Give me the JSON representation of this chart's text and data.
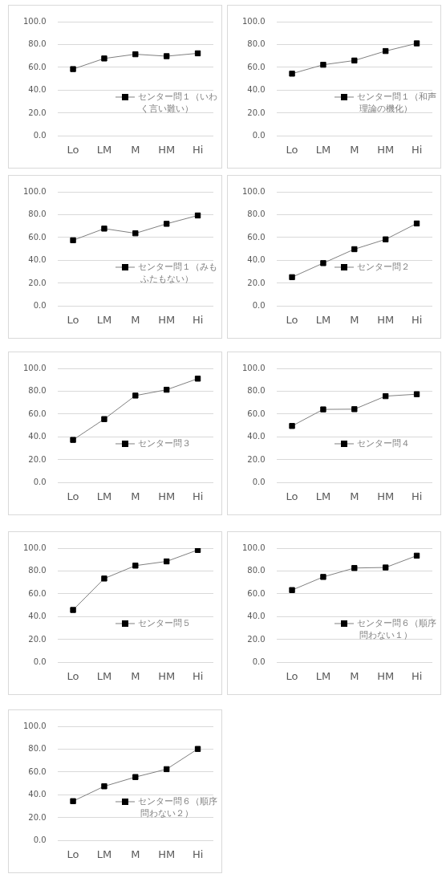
{
  "chart_data": [
    {
      "type": "line",
      "categories": [
        "Lo",
        "LM",
        "M",
        "HM",
        "Hi"
      ],
      "series": [
        {
          "name": "センター問１（いわく言い難い）",
          "color": "#000000",
          "values": [
            58.5,
            67.8,
            71.5,
            69.8,
            72.3
          ]
        }
      ],
      "ylim": [
        0,
        100
      ],
      "yticks": [
        {
          "value": 0,
          "label": "0.0"
        },
        {
          "value": 20,
          "label": "20.0"
        },
        {
          "value": 40,
          "label": "40.0"
        },
        {
          "value": 60,
          "label": "60.0"
        },
        {
          "value": 80,
          "label": "80.0"
        },
        {
          "value": 100,
          "label": "100.0"
        }
      ],
      "grid": "y",
      "legend": "right",
      "marker": "square"
    },
    {
      "type": "line",
      "categories": [
        "Lo",
        "LM",
        "M",
        "HM",
        "Hi"
      ],
      "series": [
        {
          "name": "センター問１（和声理論の機化）",
          "color": "#000000",
          "values": [
            54.5,
            62.3,
            66.0,
            74.3,
            81.0
          ]
        }
      ],
      "ylim": [
        0,
        100
      ],
      "yticks": [
        {
          "value": 0,
          "label": "0.0"
        },
        {
          "value": 20,
          "label": "20.0"
        },
        {
          "value": 40,
          "label": "40.0"
        },
        {
          "value": 60,
          "label": "60.0"
        },
        {
          "value": 80,
          "label": "80.0"
        },
        {
          "value": 100,
          "label": "100.0"
        }
      ],
      "grid": "y",
      "legend": "right",
      "marker": "square"
    },
    {
      "type": "line",
      "categories": [
        "Lo",
        "LM",
        "M",
        "HM",
        "Hi"
      ],
      "series": [
        {
          "name": "センター問１（みもふたもない）",
          "color": "#000000",
          "values": [
            57.6,
            67.8,
            63.7,
            72.0,
            79.3
          ]
        }
      ],
      "ylim": [
        0,
        100
      ],
      "yticks": [
        {
          "value": 0,
          "label": "0.0"
        },
        {
          "value": 20,
          "label": "20.0"
        },
        {
          "value": 40,
          "label": "40.0"
        },
        {
          "value": 60,
          "label": "60.0"
        },
        {
          "value": 80,
          "label": "80.0"
        },
        {
          "value": 100,
          "label": "100.0"
        }
      ],
      "grid": "y",
      "legend": "right",
      "marker": "square"
    },
    {
      "type": "line",
      "categories": [
        "Lo",
        "LM",
        "M",
        "HM",
        "Hi"
      ],
      "series": [
        {
          "name": "センター問２",
          "color": "#000000",
          "values": [
            25.3,
            37.6,
            49.8,
            58.4,
            72.3
          ]
        }
      ],
      "ylim": [
        0,
        100
      ],
      "yticks": [
        {
          "value": 0,
          "label": "0.0"
        },
        {
          "value": 20,
          "label": "20.0"
        },
        {
          "value": 40,
          "label": "40.0"
        },
        {
          "value": 60,
          "label": "60.0"
        },
        {
          "value": 80,
          "label": "80.0"
        },
        {
          "value": 100,
          "label": "100.0"
        }
      ],
      "grid": "y",
      "legend": "right",
      "marker": "square"
    },
    {
      "type": "line",
      "categories": [
        "Lo",
        "LM",
        "M",
        "HM",
        "Hi"
      ],
      "series": [
        {
          "name": "センター問３",
          "color": "#000000",
          "values": [
            37.4,
            55.6,
            76.2,
            81.3,
            91.0
          ]
        }
      ],
      "ylim": [
        0,
        100
      ],
      "yticks": [
        {
          "value": 0,
          "label": "0.0"
        },
        {
          "value": 20,
          "label": "20.0"
        },
        {
          "value": 40,
          "label": "40.0"
        },
        {
          "value": 60,
          "label": "60.0"
        },
        {
          "value": 80,
          "label": "80.0"
        },
        {
          "value": 100,
          "label": "100.0"
        }
      ],
      "grid": "y",
      "legend": "right",
      "marker": "square"
    },
    {
      "type": "line",
      "categories": [
        "Lo",
        "LM",
        "M",
        "HM",
        "Hi"
      ],
      "series": [
        {
          "name": "センター問４",
          "color": "#000000",
          "values": [
            49.6,
            64.1,
            64.3,
            75.7,
            77.4
          ]
        }
      ],
      "ylim": [
        0,
        100
      ],
      "yticks": [
        {
          "value": 0,
          "label": "0.0"
        },
        {
          "value": 20,
          "label": "20.0"
        },
        {
          "value": 40,
          "label": "40.0"
        },
        {
          "value": 60,
          "label": "60.0"
        },
        {
          "value": 80,
          "label": "80.0"
        },
        {
          "value": 100,
          "label": "100.0"
        }
      ],
      "grid": "y",
      "legend": "right",
      "marker": "square"
    },
    {
      "type": "line",
      "categories": [
        "Lo",
        "LM",
        "M",
        "HM",
        "Hi"
      ],
      "series": [
        {
          "name": "センター問５",
          "color": "#000000",
          "values": [
            45.9,
            73.4,
            84.7,
            88.4,
            98.4
          ]
        }
      ],
      "ylim": [
        0,
        100
      ],
      "yticks": [
        {
          "value": 0,
          "label": "0.0"
        },
        {
          "value": 20,
          "label": "20.0"
        },
        {
          "value": 40,
          "label": "40.0"
        },
        {
          "value": 60,
          "label": "60.0"
        },
        {
          "value": 80,
          "label": "80.0"
        },
        {
          "value": 100,
          "label": "100.0"
        }
      ],
      "grid": "y",
      "legend": "right",
      "marker": "square"
    },
    {
      "type": "line",
      "categories": [
        "Lo",
        "LM",
        "M",
        "HM",
        "Hi"
      ],
      "series": [
        {
          "name": "センター問６（順序問わない１）",
          "color": "#000000",
          "values": [
            63.3,
            74.8,
            82.6,
            83.1,
            93.4
          ]
        }
      ],
      "ylim": [
        0,
        100
      ],
      "yticks": [
        {
          "value": 0,
          "label": "0.0"
        },
        {
          "value": 20,
          "label": "20.0"
        },
        {
          "value": 40,
          "label": "40.0"
        },
        {
          "value": 60,
          "label": "60.0"
        },
        {
          "value": 80,
          "label": "80.0"
        },
        {
          "value": 100,
          "label": "100.0"
        }
      ],
      "grid": "y",
      "legend": "right",
      "marker": "square"
    },
    {
      "type": "line",
      "categories": [
        "Lo",
        "LM",
        "M",
        "HM",
        "Hi"
      ],
      "series": [
        {
          "name": "センター問６（順序問わない２）",
          "color": "#000000",
          "values": [
            34.5,
            47.5,
            55.6,
            62.5,
            80.2
          ]
        }
      ],
      "ylim": [
        0,
        100
      ],
      "yticks": [
        {
          "value": 0,
          "label": "0.0"
        },
        {
          "value": 20,
          "label": "20.0"
        },
        {
          "value": 40,
          "label": "40.0"
        },
        {
          "value": 60,
          "label": "60.0"
        },
        {
          "value": 80,
          "label": "80.0"
        },
        {
          "value": 100,
          "label": "100.0"
        }
      ],
      "grid": "y",
      "legend": "right",
      "marker": "square"
    }
  ]
}
